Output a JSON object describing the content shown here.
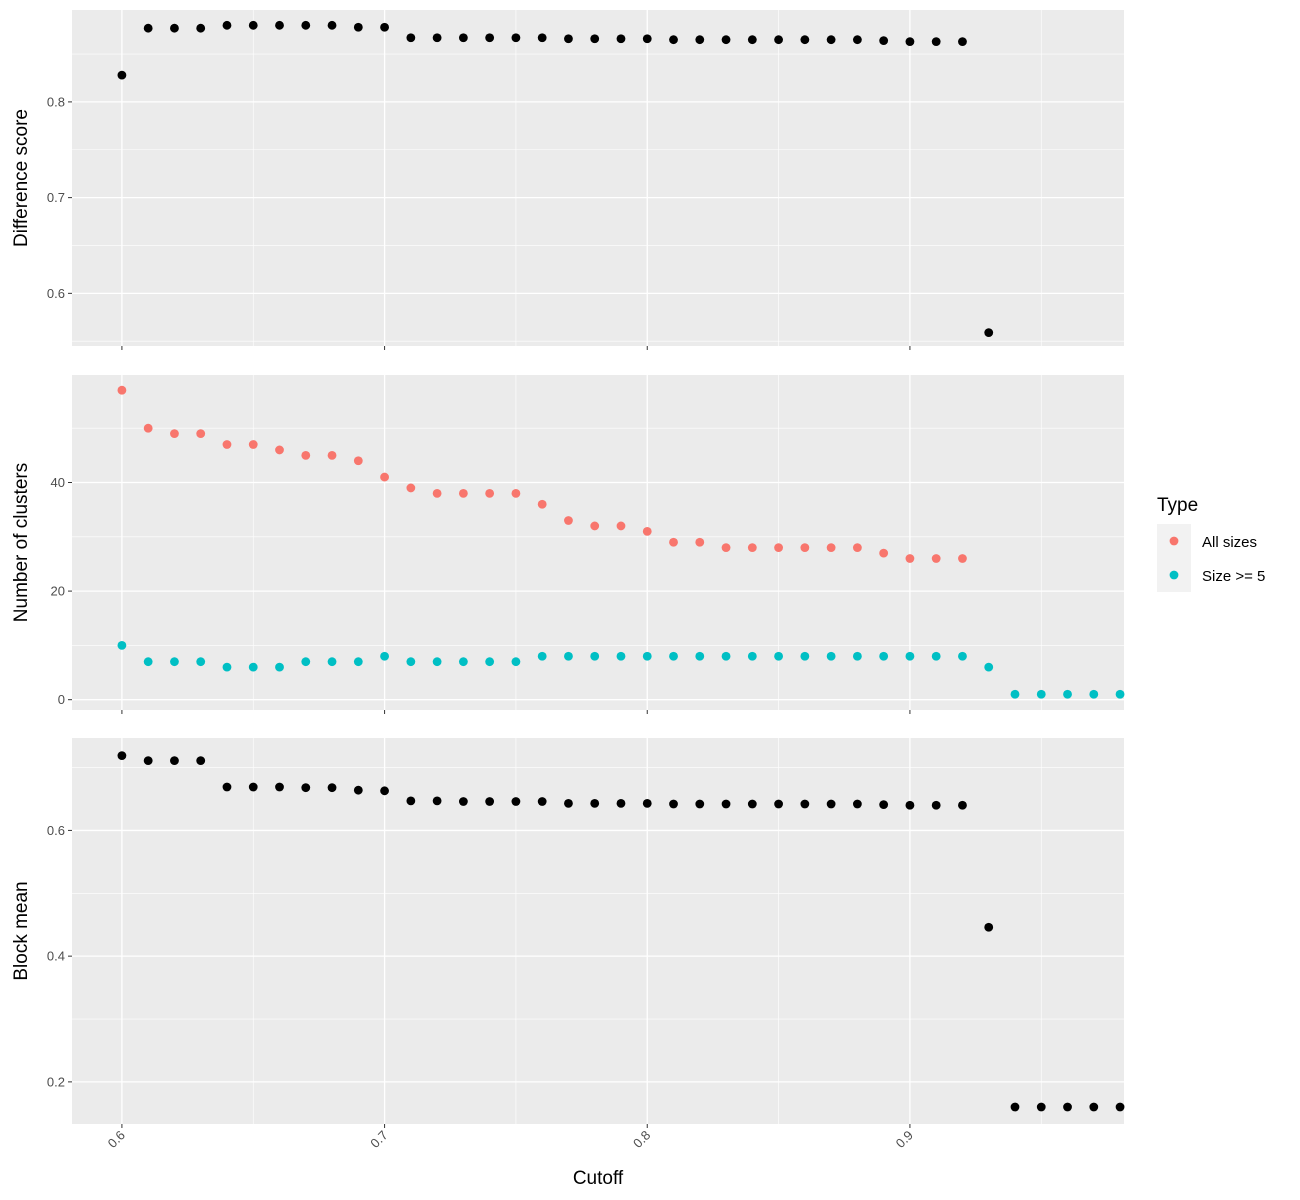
{
  "chart_data": {
    "type": "scatter",
    "xlabel": "Cutoff",
    "xlim": [
      0.581,
      0.9815
    ],
    "x_ticks": [
      "0.6",
      "0.7",
      "0.8",
      "0.9"
    ],
    "x_tick_values": [
      0.6,
      0.7,
      0.8,
      0.9
    ],
    "grid": true,
    "legend": {
      "title": "Type",
      "placement": "right",
      "items": [
        {
          "label": "All sizes",
          "color": "#F8766D"
        },
        {
          "label": "Size >= 5",
          "color": "#00BFC4"
        }
      ]
    },
    "colors": {
      "panel_bg": "#EBEBEB",
      "grid": "#FFFFFF",
      "point": "#000000"
    },
    "panels": [
      {
        "ylabel": "Difference score",
        "ylim": [
          0.545,
          0.896
        ],
        "y_ticks": [
          "0.6",
          "0.7",
          "0.8"
        ],
        "y_tick_values": [
          0.6,
          0.7,
          0.8
        ],
        "series": [
          {
            "color": "#000000",
            "x": [
              0.6,
              0.61,
              0.62,
              0.63,
              0.64,
              0.65,
              0.66,
              0.67,
              0.68,
              0.69,
              0.7,
              0.71,
              0.72,
              0.73,
              0.74,
              0.75,
              0.76,
              0.77,
              0.78,
              0.79,
              0.8,
              0.81,
              0.82,
              0.83,
              0.84,
              0.85,
              0.86,
              0.87,
              0.88,
              0.89,
              0.9,
              0.91,
              0.92,
              0.93
            ],
            "y": [
              0.828,
              0.877,
              0.877,
              0.877,
              0.88,
              0.88,
              0.88,
              0.88,
              0.88,
              0.878,
              0.878,
              0.867,
              0.867,
              0.867,
              0.867,
              0.867,
              0.867,
              0.866,
              0.866,
              0.866,
              0.866,
              0.865,
              0.865,
              0.865,
              0.865,
              0.865,
              0.865,
              0.865,
              0.865,
              0.864,
              0.863,
              0.863,
              0.863,
              0.559
            ]
          }
        ]
      },
      {
        "ylabel": "Number of clusters",
        "ylim": [
          -1.9,
          59.8
        ],
        "y_ticks": [
          "0",
          "20",
          "40"
        ],
        "y_tick_values": [
          0,
          20,
          40
        ],
        "series": [
          {
            "name": "All sizes",
            "color": "#F8766D",
            "x": [
              0.6,
              0.61,
              0.62,
              0.63,
              0.64,
              0.65,
              0.66,
              0.67,
              0.68,
              0.69,
              0.7,
              0.71,
              0.72,
              0.73,
              0.74,
              0.75,
              0.76,
              0.77,
              0.78,
              0.79,
              0.8,
              0.81,
              0.82,
              0.83,
              0.84,
              0.85,
              0.86,
              0.87,
              0.88,
              0.89,
              0.9,
              0.91,
              0.92
            ],
            "y": [
              57,
              50,
              49,
              49,
              47,
              47,
              46,
              45,
              45,
              44,
              41,
              39,
              38,
              38,
              38,
              38,
              36,
              33,
              32,
              32,
              31,
              29,
              29,
              28,
              28,
              28,
              28,
              28,
              28,
              27,
              26,
              26,
              26
            ]
          },
          {
            "name": "Size >= 5",
            "color": "#00BFC4",
            "x": [
              0.6,
              0.61,
              0.62,
              0.63,
              0.64,
              0.65,
              0.66,
              0.67,
              0.68,
              0.69,
              0.7,
              0.71,
              0.72,
              0.73,
              0.74,
              0.75,
              0.76,
              0.77,
              0.78,
              0.79,
              0.8,
              0.81,
              0.82,
              0.83,
              0.84,
              0.85,
              0.86,
              0.87,
              0.88,
              0.89,
              0.9,
              0.91,
              0.92,
              0.93,
              0.94,
              0.95,
              0.96,
              0.97,
              0.98
            ],
            "y": [
              10,
              7,
              7,
              7,
              6,
              6,
              6,
              7,
              7,
              7,
              8,
              7,
              7,
              7,
              7,
              7,
              8,
              8,
              8,
              8,
              8,
              8,
              8,
              8,
              8,
              8,
              8,
              8,
              8,
              8,
              8,
              8,
              8,
              6,
              1,
              1,
              1,
              1,
              1
            ]
          }
        ]
      },
      {
        "ylabel": "Block mean",
        "ylim": [
          0.133,
          0.747
        ],
        "y_ticks": [
          "0.2",
          "0.4",
          "0.6"
        ],
        "y_tick_values": [
          0.2,
          0.4,
          0.6
        ],
        "series": [
          {
            "color": "#000000",
            "x": [
              0.6,
              0.61,
              0.62,
              0.63,
              0.64,
              0.65,
              0.66,
              0.67,
              0.68,
              0.69,
              0.7,
              0.71,
              0.72,
              0.73,
              0.74,
              0.75,
              0.76,
              0.77,
              0.78,
              0.79,
              0.8,
              0.81,
              0.82,
              0.83,
              0.84,
              0.85,
              0.86,
              0.87,
              0.88,
              0.89,
              0.9,
              0.91,
              0.92,
              0.93,
              0.94,
              0.95,
              0.96,
              0.97,
              0.98
            ],
            "y": [
              0.719,
              0.711,
              0.711,
              0.711,
              0.669,
              0.669,
              0.669,
              0.668,
              0.668,
              0.664,
              0.663,
              0.647,
              0.647,
              0.646,
              0.646,
              0.646,
              0.646,
              0.643,
              0.643,
              0.643,
              0.643,
              0.642,
              0.642,
              0.642,
              0.642,
              0.642,
              0.642,
              0.642,
              0.642,
              0.641,
              0.64,
              0.64,
              0.64,
              0.446,
              0.16,
              0.16,
              0.16,
              0.16,
              0.16
            ]
          }
        ]
      }
    ]
  }
}
